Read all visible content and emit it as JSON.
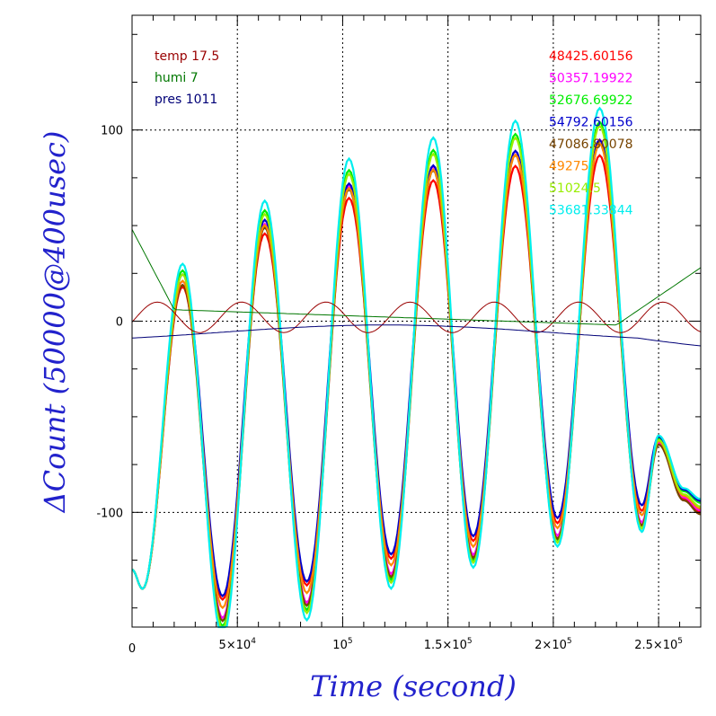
{
  "chart_data": {
    "type": "line",
    "title": "",
    "xlabel": "Time (second)",
    "ylabel": "ΔCount (50000@400usec)",
    "xlim": [
      0,
      270000
    ],
    "ylim": [
      -160,
      160
    ],
    "grid": true,
    "x_ticks": [
      {
        "value": 50000,
        "base": "5×10",
        "exp": "4"
      },
      {
        "value": 100000,
        "base": "10",
        "exp": "5"
      },
      {
        "value": 150000,
        "base": "1.5×10",
        "exp": "5"
      },
      {
        "value": 200000,
        "base": "2×10",
        "exp": "5"
      },
      {
        "value": 250000,
        "base": "2.5×10",
        "exp": "5"
      }
    ],
    "x_origin_label": "0",
    "y_ticks": [
      {
        "value": 100,
        "label": "100"
      },
      {
        "value": 0,
        "label": "0"
      },
      {
        "value": -100,
        "label": "-100"
      }
    ],
    "env_legend": [
      {
        "text": "temp 17.5",
        "color": "#990000"
      },
      {
        "text": "humi 7",
        "color": "#007700"
      },
      {
        "text": "pres 1011",
        "color": "#000077"
      }
    ],
    "series": [
      {
        "name": "48425.60156",
        "color": "#ff0000",
        "amp": 0.93,
        "offset": -20
      },
      {
        "name": "50357.19922",
        "color": "#ff00ff",
        "amp": 1.0,
        "offset": -18
      },
      {
        "name": "52676.69922",
        "color": "#00ee00",
        "amp": 1.05,
        "offset": -10
      },
      {
        "name": "54792.60156",
        "color": "#0000cc",
        "amp": 0.95,
        "offset": -8
      },
      {
        "name": "47086.80078",
        "color": "#774400",
        "amp": 1.0,
        "offset": -22
      },
      {
        "name": "49275",
        "color": "#ff8800",
        "amp": 0.97,
        "offset": -16
      },
      {
        "name": "51024.5",
        "color": "#99ee00",
        "amp": 1.05,
        "offset": -14
      },
      {
        "name": "53681.33844",
        "color": "#00eeee",
        "amp": 1.1,
        "offset": -6
      }
    ],
    "peaks_x": [
      24000,
      63000,
      103000,
      143000,
      182000,
      222000
    ],
    "troughs_x": [
      43000,
      83000,
      123000,
      162000,
      202000,
      242000
    ],
    "peak_values": [
      30,
      60,
      80,
      90,
      98,
      104
    ],
    "trough_values": [
      -148,
      -140,
      -125,
      -115,
      -105,
      -98
    ]
  }
}
